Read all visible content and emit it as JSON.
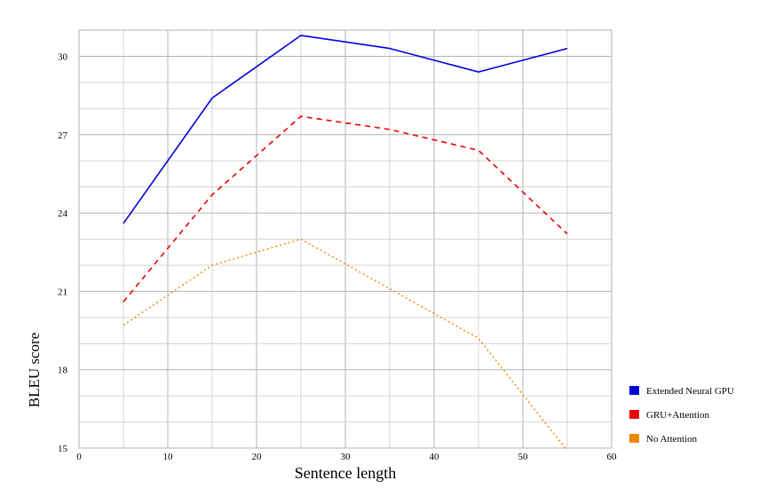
{
  "chart_data": {
    "type": "line",
    "title": "",
    "xlabel": "Sentence length",
    "ylabel": "BLEU score",
    "xlim": [
      0,
      60
    ],
    "ylim": [
      15,
      31
    ],
    "x_ticks": [
      0,
      10,
      20,
      30,
      40,
      50,
      60
    ],
    "y_ticks": [
      15,
      18,
      21,
      24,
      27,
      30
    ],
    "x_minor_step": 5,
    "y_minor_step": 1,
    "grid": true,
    "legend_position": "bottom-right",
    "series": [
      {
        "name": "Extended Neural GPU",
        "color": "#0000dd",
        "line_style": "solid",
        "x": [
          5,
          15,
          25,
          35,
          45,
          55
        ],
        "y": [
          23.6,
          28.4,
          30.8,
          30.3,
          29.4,
          30.3
        ]
      },
      {
        "name": "GRU+Attention",
        "color": "#ee0000",
        "line_style": "dashed",
        "x": [
          5,
          15,
          25,
          35,
          45,
          55
        ],
        "y": [
          20.6,
          24.7,
          27.7,
          27.2,
          26.4,
          23.2
        ]
      },
      {
        "name": "No Attention",
        "color": "#ee8800",
        "line_style": "dotted",
        "x": [
          5,
          15,
          25,
          35,
          45,
          55
        ],
        "y": [
          19.7,
          22.0,
          23.0,
          21.1,
          19.2,
          14.9
        ]
      }
    ]
  }
}
